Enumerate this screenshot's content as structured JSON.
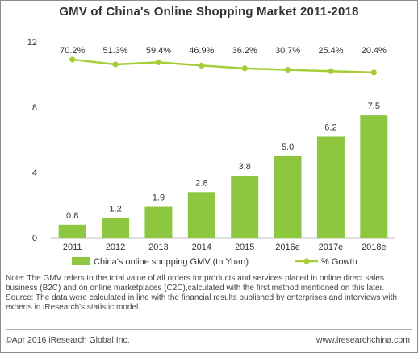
{
  "title": "GMV of China's Online Shopping Market 2011-2018",
  "chart_data": {
    "type": "bar",
    "categories": [
      "2011",
      "2012",
      "2013",
      "2014",
      "2015",
      "2016e",
      "2017e",
      "2018e"
    ],
    "series": [
      {
        "name": "China's online shopping GMV (tn Yuan)",
        "type": "bar",
        "values": [
          0.8,
          1.2,
          1.9,
          2.8,
          3.8,
          5.0,
          6.2,
          7.5
        ],
        "labels": [
          "0.8",
          "1.2",
          "1.9",
          "2.8",
          "3.8",
          "5.0",
          "6.2",
          "7.5"
        ],
        "color": "#8dc63f"
      },
      {
        "name": "% Gowth",
        "type": "line",
        "values": [
          70.2,
          51.3,
          59.4,
          46.9,
          36.2,
          30.7,
          25.4,
          20.4
        ],
        "labels": [
          "70.2%",
          "51.3%",
          "59.4%",
          "46.9%",
          "36.2%",
          "30.7%",
          "25.4%",
          "20.4%"
        ],
        "color": "#a5cd39"
      }
    ],
    "y_ticks": [
      "0",
      "4",
      "8",
      "12"
    ],
    "ylim": [
      0,
      12
    ],
    "legend_position": "bottom"
  },
  "note": "Note: The GMV refers to the total value of all orders for products and services placed in online direct sales business (B2C) and on online marketplaces (C2C),calculated with the first method mentioned on this later.",
  "source": "Source: The data were calculated in line with the financial results published by enterprises and interviews with experts in iResearch's statistic model.",
  "footer": {
    "copyright": "©Apr 2016 iResearch Global Inc.",
    "website": "www.iresearchchina.com"
  }
}
